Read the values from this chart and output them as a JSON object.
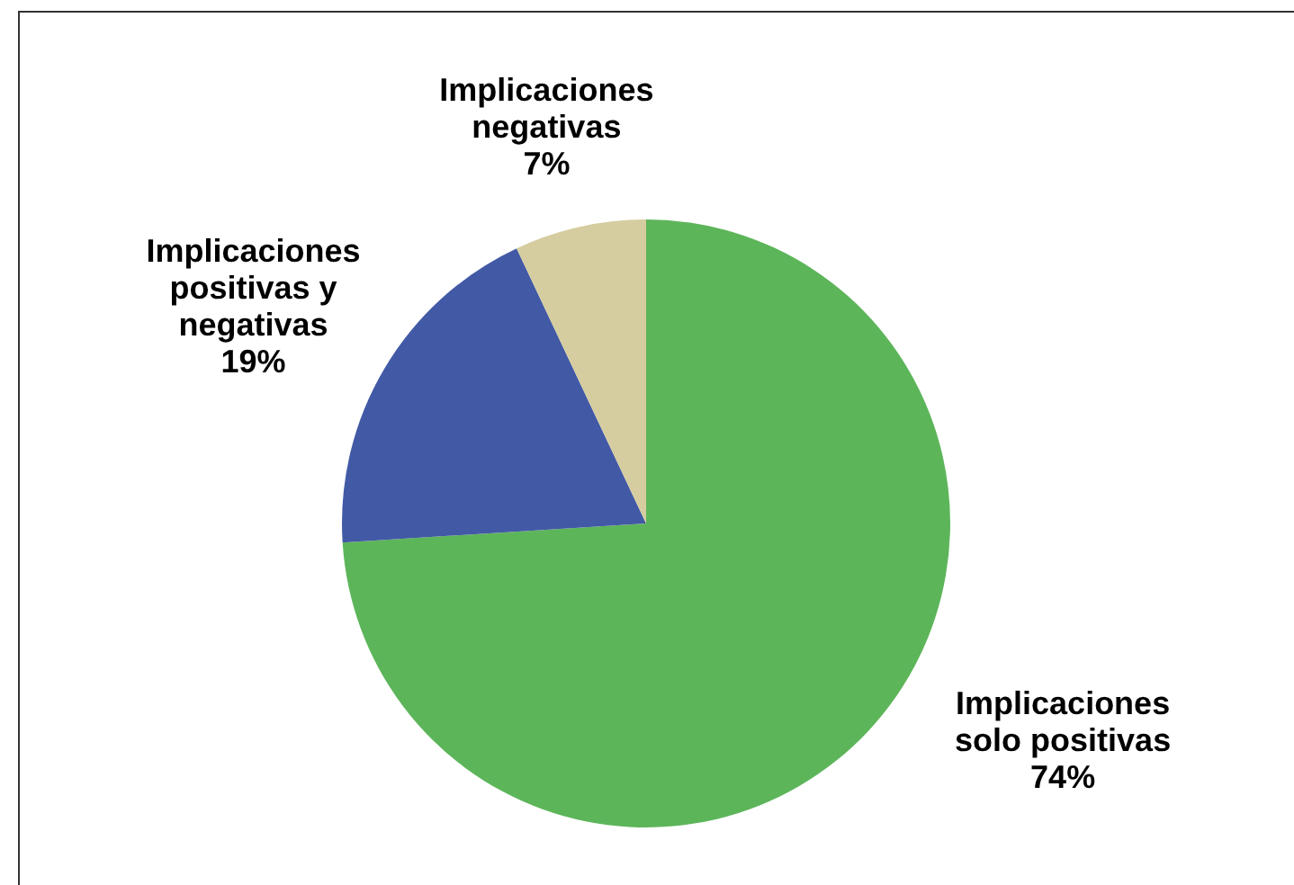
{
  "chart_data": {
    "type": "pie",
    "categories": [
      "Implicaciones solo positivas",
      "Implicaciones positivas y negativas",
      "Implicaciones negativas"
    ],
    "values": [
      74,
      19,
      7
    ],
    "colors": [
      "#5db55a",
      "#4259a5",
      "#d5cda0"
    ],
    "value_labels": [
      "74%",
      "19%",
      "7%"
    ]
  }
}
